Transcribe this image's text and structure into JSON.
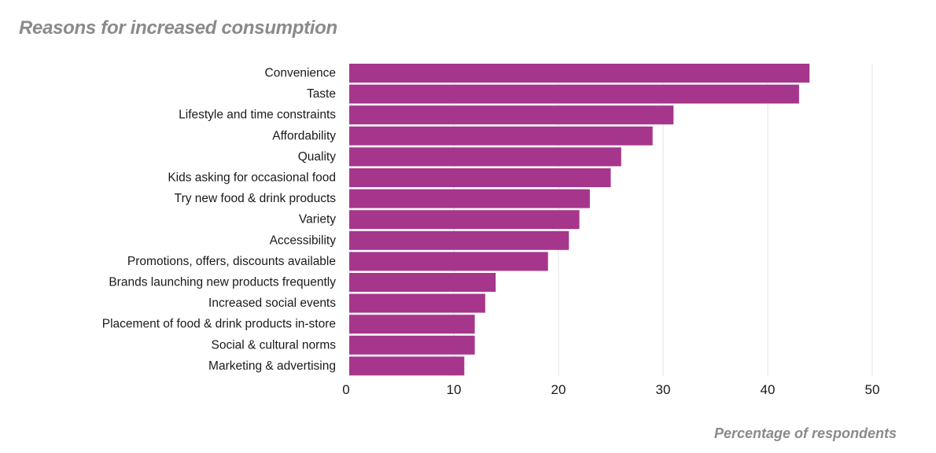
{
  "chart_data": {
    "type": "bar",
    "orientation": "horizontal",
    "title": "Reasons for increased consumption",
    "xlabel": "Percentage of respondents",
    "ylabel": "",
    "categories": [
      "Convenience",
      "Taste",
      "Lifestyle and time constraints",
      "Affordability",
      "Quality",
      "Kids asking for occasional food",
      "Try new food & drink  products",
      "Variety",
      "Accessibility",
      "Promotions, offers, discounts available",
      "Brands launching new products frequently",
      "Increased social events",
      "Placement of food & drink products in-store",
      "Social & cultural norms",
      "Marketing & advertising"
    ],
    "values": [
      44,
      43,
      31,
      29,
      26,
      25,
      23,
      22,
      21,
      19,
      14,
      13,
      12,
      12,
      11
    ],
    "xlim": [
      0,
      50
    ],
    "xticks": [
      0,
      10,
      20,
      30,
      40,
      50
    ],
    "grid": "vertical",
    "bar_color": "#a6368c"
  }
}
